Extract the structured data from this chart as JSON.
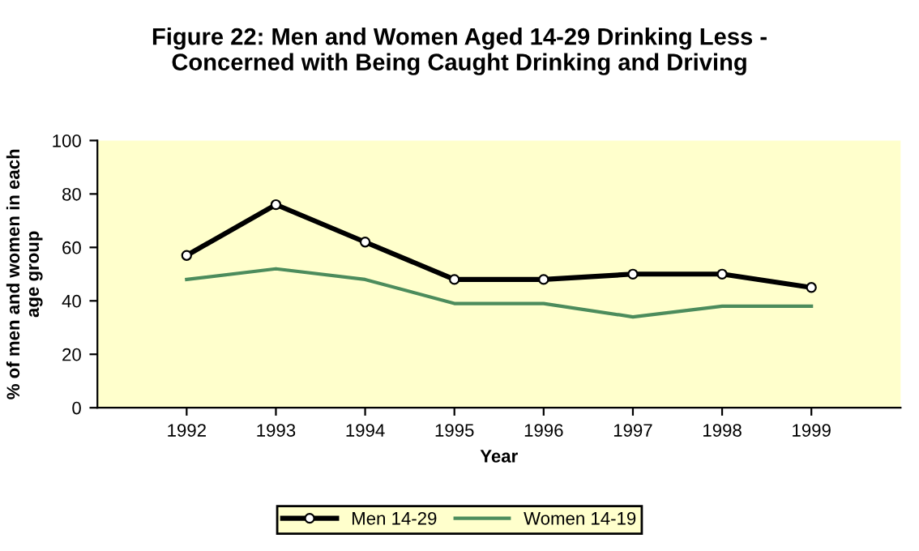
{
  "chart_data": {
    "type": "line",
    "title": "Figure 22: Men and Women Aged 14-29 Drinking Less -\nConcerned with Being Caught Drinking and Driving",
    "xlabel": "Year",
    "ylabel": "% of men and women in each\nage group",
    "categories": [
      "1992",
      "1993",
      "1994",
      "1995",
      "1996",
      "1997",
      "1998",
      "1999"
    ],
    "series": [
      {
        "name": "Men 14-29",
        "color": "#000000",
        "marker": "circle",
        "values": [
          57,
          76,
          62,
          48,
          48,
          50,
          50,
          45
        ]
      },
      {
        "name": "Women 14-19",
        "color": "#4c8c5c",
        "marker": "none",
        "values": [
          48,
          52,
          48,
          39,
          39,
          34,
          38,
          38
        ]
      }
    ],
    "ylim": [
      0,
      100
    ],
    "yticks": [
      0,
      20,
      40,
      60,
      80,
      100
    ],
    "grid": false,
    "legend": "bottom"
  }
}
